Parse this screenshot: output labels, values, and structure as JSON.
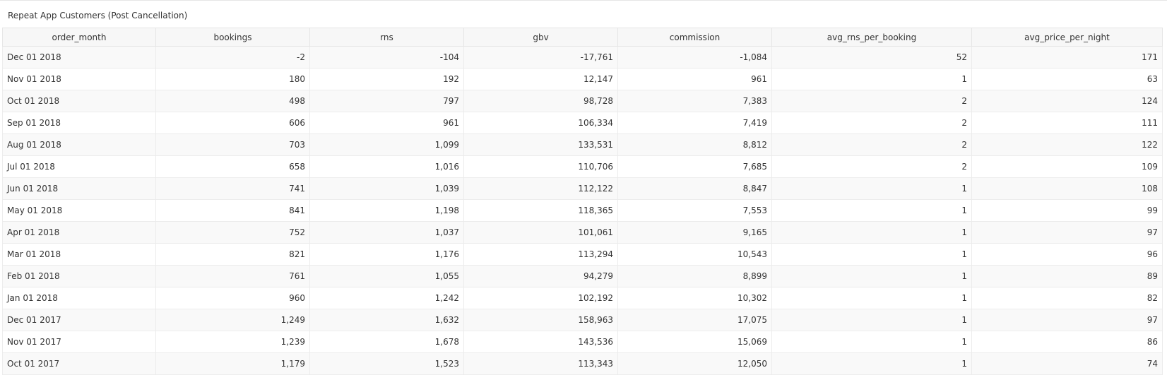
{
  "panel": {
    "title": "Repeat App Customers (Post Cancellation)"
  },
  "table": {
    "columns": [
      "order_month",
      "bookings",
      "rns",
      "gbv",
      "commission",
      "avg_rns_per_booking",
      "avg_price_per_night"
    ],
    "rows": [
      [
        "Dec 01 2018",
        "-2",
        "-104",
        "-17,761",
        "-1,084",
        "52",
        "171"
      ],
      [
        "Nov 01 2018",
        "180",
        "192",
        "12,147",
        "961",
        "1",
        "63"
      ],
      [
        "Oct 01 2018",
        "498",
        "797",
        "98,728",
        "7,383",
        "2",
        "124"
      ],
      [
        "Sep 01 2018",
        "606",
        "961",
        "106,334",
        "7,419",
        "2",
        "111"
      ],
      [
        "Aug 01 2018",
        "703",
        "1,099",
        "133,531",
        "8,812",
        "2",
        "122"
      ],
      [
        "Jul 01 2018",
        "658",
        "1,016",
        "110,706",
        "7,685",
        "2",
        "109"
      ],
      [
        "Jun 01 2018",
        "741",
        "1,039",
        "112,122",
        "8,847",
        "1",
        "108"
      ],
      [
        "May 01 2018",
        "841",
        "1,198",
        "118,365",
        "7,553",
        "1",
        "99"
      ],
      [
        "Apr 01 2018",
        "752",
        "1,037",
        "101,061",
        "9,165",
        "1",
        "97"
      ],
      [
        "Mar 01 2018",
        "821",
        "1,176",
        "113,294",
        "10,543",
        "1",
        "96"
      ],
      [
        "Feb 01 2018",
        "761",
        "1,055",
        "94,279",
        "8,899",
        "1",
        "89"
      ],
      [
        "Jan 01 2018",
        "960",
        "1,242",
        "102,192",
        "10,302",
        "1",
        "82"
      ],
      [
        "Dec 01 2017",
        "1,249",
        "1,632",
        "158,963",
        "17,075",
        "1",
        "97"
      ],
      [
        "Nov 01 2017",
        "1,239",
        "1,678",
        "143,536",
        "15,069",
        "1",
        "86"
      ],
      [
        "Oct 01 2017",
        "1,179",
        "1,523",
        "113,343",
        "12,050",
        "1",
        "74"
      ]
    ]
  }
}
